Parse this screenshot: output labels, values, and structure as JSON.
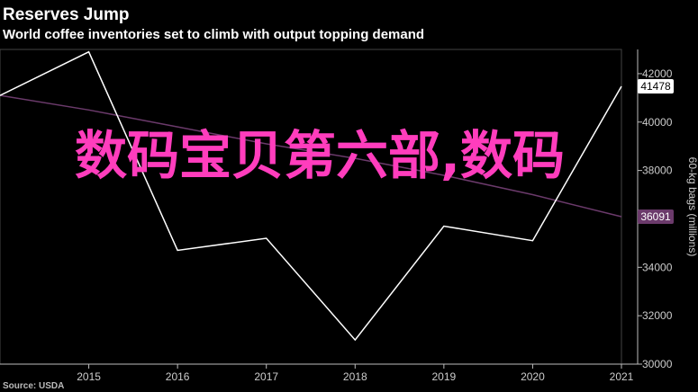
{
  "header": {
    "title": "Reserves Jump",
    "subtitle": "World coffee inventories set to climb with output topping demand"
  },
  "footer": {
    "source": "Source: USDA"
  },
  "overlay": {
    "text": "数码宝贝第六部,数码"
  },
  "colors": {
    "background": "#000000",
    "series_line": "#ffffff",
    "trend_line": "#6b3a6b",
    "overlay_text": "#ff3dbd"
  },
  "chart_data": {
    "type": "line",
    "title": "Reserves Jump",
    "subtitle": "World coffee inventories set to climb with output topping demand",
    "ylabel": "60-kg bags (millions)",
    "xlabel": "",
    "x": [
      2014,
      2015,
      2016,
      2017,
      2018,
      2019,
      2020,
      2021
    ],
    "xticks": [
      "2015",
      "2016",
      "2017",
      "2018",
      "2019",
      "2020",
      "2021"
    ],
    "xlim": [
      2014,
      2021
    ],
    "ylim": [
      30000,
      43000
    ],
    "yticks": [
      "30000",
      "32000",
      "34000",
      "36000",
      "38000",
      "40000",
      "42000"
    ],
    "y_axis_position": "right",
    "series": [
      {
        "values": [
          41100,
          42900,
          34700,
          35200,
          31000,
          35700,
          35100,
          41478
        ],
        "end_label": "41478"
      },
      {
        "values": [
          41100,
          40500,
          39800,
          39100,
          38500,
          37800,
          37000,
          36091
        ],
        "end_label": "36091"
      }
    ],
    "grid": false
  }
}
